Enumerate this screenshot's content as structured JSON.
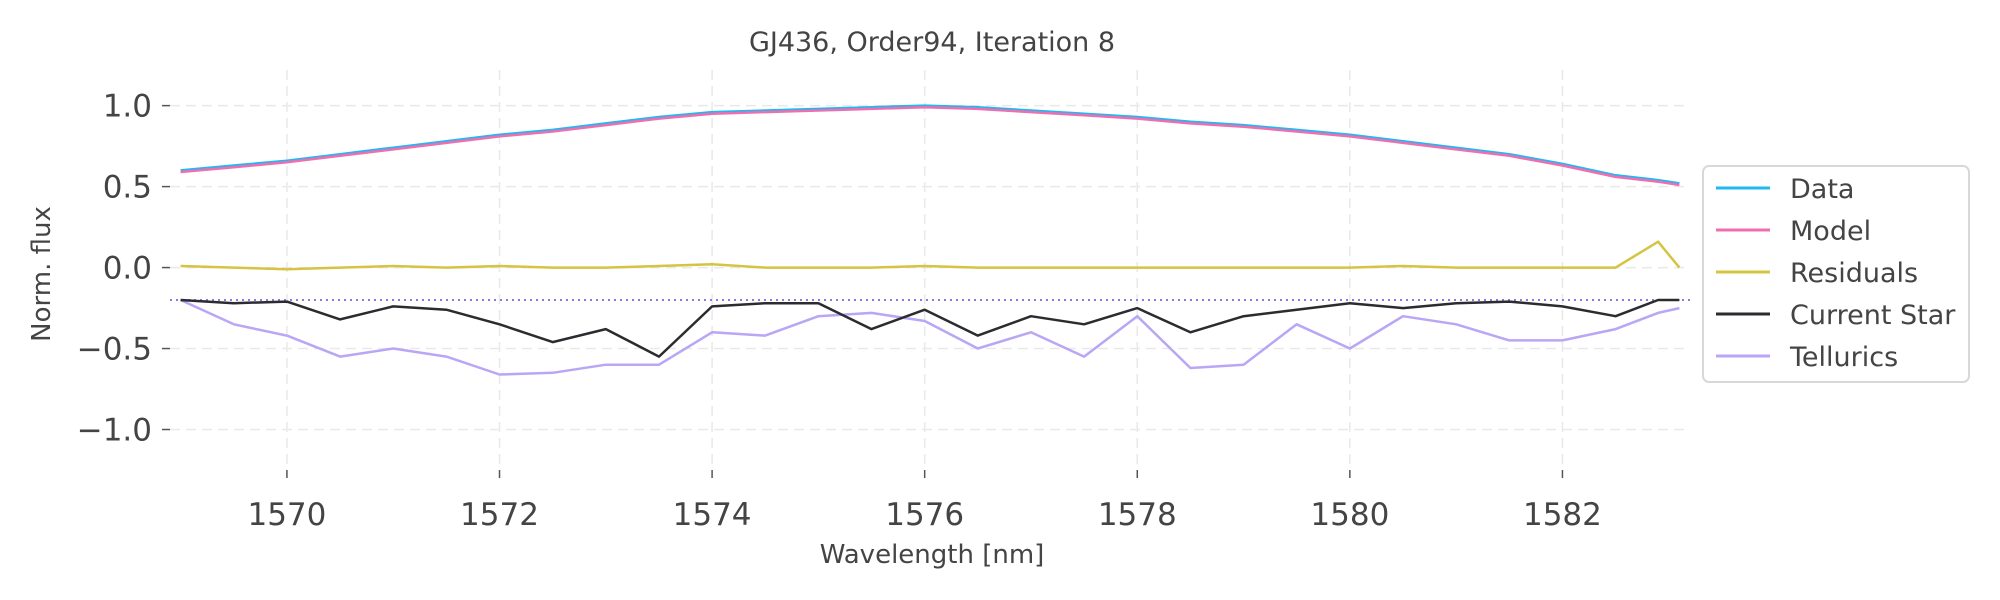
{
  "chart_data": {
    "type": "line",
    "title": "GJ436, Order94, Iteration 8",
    "xlabel": "Wavelength [nm]",
    "ylabel": "Norm. flux",
    "xlim": [
      1568.9,
      1583.2
    ],
    "ylim": [
      -1.25,
      1.22
    ],
    "xticks": [
      1570,
      1572,
      1574,
      1576,
      1578,
      1580,
      1582
    ],
    "yticks": [
      1.0,
      0.5,
      0.0,
      -0.5,
      -1.0
    ],
    "xtick_labels": [
      "1570",
      "1572",
      "1574",
      "1576",
      "1578",
      "1580",
      "1582"
    ],
    "ytick_labels": [
      "1.0",
      "0.5",
      "0.0",
      "−0.5",
      "−1.0"
    ],
    "grid": true,
    "legend_position": "right",
    "telluric_baseline": -0.2,
    "series": [
      {
        "name": "Data",
        "color": "#1fb8f0",
        "x": [
          1569.0,
          1569.5,
          1570.0,
          1570.5,
          1571.0,
          1571.5,
          1572.0,
          1572.5,
          1573.0,
          1573.5,
          1574.0,
          1574.5,
          1575.0,
          1575.5,
          1576.0,
          1576.5,
          1577.0,
          1577.5,
          1578.0,
          1578.5,
          1579.0,
          1579.5,
          1580.0,
          1580.5,
          1581.0,
          1581.5,
          1582.0,
          1582.5,
          1582.9,
          1583.1
        ],
        "y": [
          0.6,
          0.63,
          0.66,
          0.7,
          0.74,
          0.78,
          0.82,
          0.85,
          0.89,
          0.93,
          0.96,
          0.97,
          0.98,
          0.99,
          1.0,
          0.99,
          0.97,
          0.95,
          0.93,
          0.9,
          0.88,
          0.85,
          0.82,
          0.78,
          0.74,
          0.7,
          0.64,
          0.57,
          0.54,
          0.52
        ]
      },
      {
        "name": "Model",
        "color": "#ee6fb0",
        "x": [
          1569.0,
          1569.5,
          1570.0,
          1570.5,
          1571.0,
          1571.5,
          1572.0,
          1572.5,
          1573.0,
          1573.5,
          1574.0,
          1574.5,
          1575.0,
          1575.5,
          1576.0,
          1576.5,
          1577.0,
          1577.5,
          1578.0,
          1578.5,
          1579.0,
          1579.5,
          1580.0,
          1580.5,
          1581.0,
          1581.5,
          1582.0,
          1582.5,
          1582.9,
          1583.1
        ],
        "y": [
          0.59,
          0.62,
          0.65,
          0.69,
          0.73,
          0.77,
          0.81,
          0.84,
          0.88,
          0.92,
          0.95,
          0.96,
          0.97,
          0.98,
          0.99,
          0.98,
          0.96,
          0.94,
          0.92,
          0.89,
          0.87,
          0.84,
          0.81,
          0.77,
          0.73,
          0.69,
          0.63,
          0.56,
          0.53,
          0.51
        ]
      },
      {
        "name": "Residuals",
        "color": "#d4c441",
        "x": [
          1569.0,
          1569.5,
          1570.0,
          1570.5,
          1571.0,
          1571.5,
          1572.0,
          1572.5,
          1573.0,
          1573.5,
          1574.0,
          1574.5,
          1575.0,
          1575.5,
          1576.0,
          1576.5,
          1577.0,
          1577.5,
          1578.0,
          1578.5,
          1579.0,
          1579.5,
          1580.0,
          1580.5,
          1581.0,
          1581.5,
          1582.0,
          1582.5,
          1582.9,
          1583.1
        ],
        "y": [
          0.01,
          0.0,
          -0.01,
          0.0,
          0.01,
          0.0,
          0.01,
          0.0,
          0.0,
          0.01,
          0.02,
          0.0,
          0.0,
          0.0,
          0.01,
          0.0,
          0.0,
          0.0,
          0.0,
          0.0,
          0.0,
          0.0,
          0.0,
          0.01,
          0.0,
          0.0,
          0.0,
          0.0,
          0.16,
          0.0
        ]
      },
      {
        "name": "Current Star",
        "color": "#2b2b30",
        "x": [
          1569.0,
          1569.5,
          1570.0,
          1570.5,
          1571.0,
          1571.5,
          1572.0,
          1572.5,
          1573.0,
          1573.5,
          1574.0,
          1574.5,
          1575.0,
          1575.5,
          1576.0,
          1576.5,
          1577.0,
          1577.5,
          1578.0,
          1578.5,
          1579.0,
          1579.5,
          1580.0,
          1580.5,
          1581.0,
          1581.5,
          1582.0,
          1582.5,
          1582.9,
          1583.1
        ],
        "y": [
          -0.2,
          -0.22,
          -0.21,
          -0.32,
          -0.24,
          -0.26,
          -0.35,
          -0.46,
          -0.38,
          -0.55,
          -0.24,
          -0.22,
          -0.22,
          -0.38,
          -0.26,
          -0.42,
          -0.3,
          -0.35,
          -0.25,
          -0.4,
          -0.3,
          -0.26,
          -0.22,
          -0.25,
          -0.22,
          -0.21,
          -0.24,
          -0.3,
          -0.2,
          -0.2
        ]
      },
      {
        "name": "Tellurics",
        "color": "#b9a6f5",
        "x": [
          1569.0,
          1569.5,
          1570.0,
          1570.5,
          1571.0,
          1571.5,
          1572.0,
          1572.5,
          1573.0,
          1573.5,
          1574.0,
          1574.5,
          1575.0,
          1575.5,
          1576.0,
          1576.5,
          1577.0,
          1577.5,
          1578.0,
          1578.5,
          1579.0,
          1579.5,
          1580.0,
          1580.5,
          1581.0,
          1581.5,
          1582.0,
          1582.5,
          1582.9,
          1583.1
        ],
        "y": [
          -0.2,
          -0.35,
          -0.42,
          -0.55,
          -0.5,
          -0.55,
          -0.66,
          -0.65,
          -0.6,
          -0.6,
          -0.4,
          -0.42,
          -0.3,
          -0.28,
          -0.33,
          -0.5,
          -0.4,
          -0.55,
          -0.3,
          -0.62,
          -0.6,
          -0.35,
          -0.5,
          -0.3,
          -0.35,
          -0.45,
          -0.45,
          -0.38,
          -0.28,
          -0.25
        ]
      }
    ]
  }
}
